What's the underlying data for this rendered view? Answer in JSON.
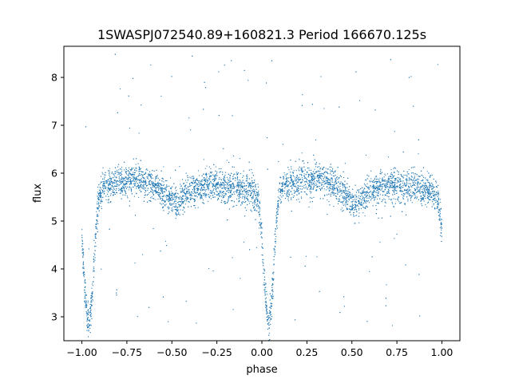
{
  "chart_data": {
    "type": "scatter",
    "title": "1SWASPJ072540.89+160821.3 Period 166670.125s",
    "xlabel": "phase",
    "ylabel": "flux",
    "xlim": [
      -1.1,
      1.1
    ],
    "ylim": [
      2.5,
      8.65
    ],
    "xticks": [
      -1.0,
      -0.75,
      -0.5,
      -0.25,
      0.0,
      0.25,
      0.5,
      0.75,
      1.0
    ],
    "xtick_labels": [
      "−1.00",
      "−0.75",
      "−0.50",
      "−0.25",
      "0.00",
      "0.25",
      "0.50",
      "0.75",
      "1.00"
    ],
    "yticks": [
      3,
      4,
      5,
      6,
      7,
      8
    ],
    "ytick_labels": [
      "3",
      "4",
      "5",
      "6",
      "7",
      "8"
    ],
    "grid": false,
    "marker_color": "#1f77b4",
    "phase_range": [
      -1.0,
      1.0
    ],
    "profile": {
      "phase": [
        0.0,
        0.01,
        0.02,
        0.03,
        0.04,
        0.05,
        0.06,
        0.07,
        0.08,
        0.09,
        0.1,
        0.12,
        0.15,
        0.2,
        0.25,
        0.3,
        0.35,
        0.4,
        0.45,
        0.48,
        0.5,
        0.52,
        0.55,
        0.6,
        0.65,
        0.7,
        0.75,
        0.8,
        0.85,
        0.9,
        0.95,
        0.98,
        1.0
      ],
      "flux": [
        4.6,
        4.0,
        3.4,
        3.0,
        2.9,
        3.1,
        3.6,
        4.3,
        4.9,
        5.3,
        5.6,
        5.7,
        5.75,
        5.8,
        5.85,
        5.9,
        5.85,
        5.75,
        5.6,
        5.5,
        5.4,
        5.35,
        5.45,
        5.6,
        5.7,
        5.75,
        5.75,
        5.7,
        5.7,
        5.65,
        5.6,
        5.4,
        4.8
      ]
    },
    "scatter_sigma": 0.17
  }
}
